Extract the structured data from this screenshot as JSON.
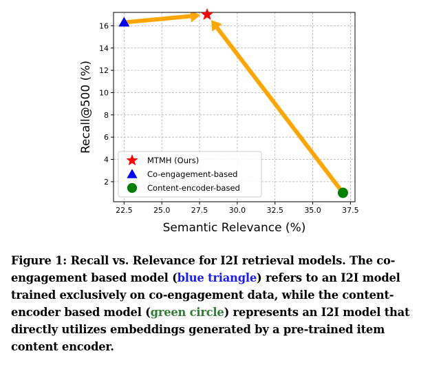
{
  "chart_data": {
    "type": "scatter",
    "title": "",
    "xlabel": "Semantic Relevance (%)",
    "ylabel": "Recall@500 (%)",
    "xlim": [
      21.8,
      37.8
    ],
    "ylim": [
      0.2,
      17.2
    ],
    "xticks": [
      22.5,
      25.0,
      27.5,
      30.0,
      32.5,
      35.0,
      37.5
    ],
    "xtick_labels": [
      "22.5",
      "25.0",
      "27.5",
      "30.0",
      "32.5",
      "35.0",
      "37.5"
    ],
    "yticks": [
      2,
      4,
      6,
      8,
      10,
      12,
      14,
      16
    ],
    "ytick_labels": [
      "2",
      "4",
      "6",
      "8",
      "10",
      "12",
      "14",
      "16"
    ],
    "grid": true,
    "legend_position": "bottom-left",
    "series": [
      {
        "name": "MTMH (Ours)",
        "marker": "star",
        "color": "#ff0000",
        "x": [
          28.0
        ],
        "y": [
          17.0
        ]
      },
      {
        "name": "Co-engagement-based",
        "marker": "triangle",
        "color": "#0000ff",
        "x": [
          22.5
        ],
        "y": [
          16.3
        ]
      },
      {
        "name": "Content-encoder-based",
        "marker": "circle",
        "color": "#008000",
        "x": [
          37.0
        ],
        "y": [
          1.0
        ]
      }
    ],
    "arrows": [
      {
        "from": [
          22.5,
          16.3
        ],
        "to": [
          28.0,
          17.0
        ],
        "color": "#ffa500"
      },
      {
        "from": [
          37.0,
          1.0
        ],
        "to": [
          28.0,
          17.0
        ],
        "color": "#ffa500"
      }
    ]
  },
  "caption": {
    "p1": "Figure 1: Recall vs. Relevance for I2I retrieval models. The co-engagement based model (",
    "blue": "blue triangle",
    "p2": ") refers to an I2I model trained exclusively on co-engagement data, while the content-encoder based model (",
    "green": "green circle",
    "p3": ") represents an I2I model that directly utilizes embeddings generated by a pre-trained item content encoder."
  }
}
